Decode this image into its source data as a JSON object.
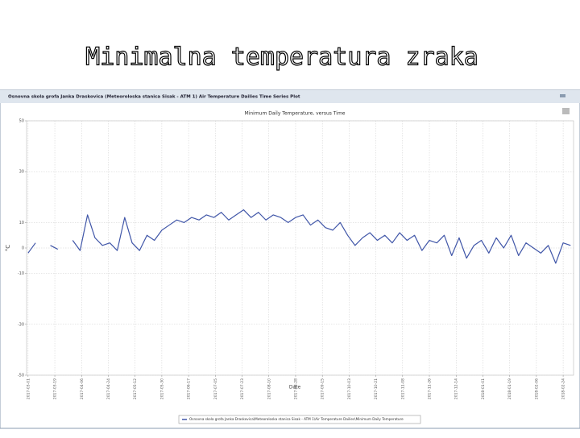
{
  "slide_title": "Minimalna temperatura zraka",
  "window_title": "Osnovna skola grofa Janka Draskovica (Meteoroloska stanica Sisak - ATM 1) Air Temperature Dailies Time Series Plot",
  "chart_data": {
    "type": "line",
    "title": "Minimum Daily Temperature, versus Time",
    "x_label": "Date",
    "y_label": "°C",
    "x": [
      "2017-03-01",
      "2017-03-06",
      "2017-03-11",
      "2017-03-16",
      "2017-03-21",
      "2017-03-26",
      "2017-03-31",
      "2017-04-05",
      "2017-04-10",
      "2017-04-15",
      "2017-04-20",
      "2017-04-25",
      "2017-04-30",
      "2017-05-05",
      "2017-05-10",
      "2017-05-15",
      "2017-05-20",
      "2017-05-25",
      "2017-05-30",
      "2017-06-04",
      "2017-06-09",
      "2017-06-14",
      "2017-06-19",
      "2017-06-24",
      "2017-06-29",
      "2017-07-04",
      "2017-07-09",
      "2017-07-14",
      "2017-07-19",
      "2017-07-24",
      "2017-07-29",
      "2017-08-03",
      "2017-08-08",
      "2017-08-13",
      "2017-08-18",
      "2017-08-23",
      "2017-08-28",
      "2017-09-02",
      "2017-09-07",
      "2017-09-12",
      "2017-09-17",
      "2017-09-22",
      "2017-09-27",
      "2017-10-02",
      "2017-10-07",
      "2017-10-12",
      "2017-10-17",
      "2017-10-22",
      "2017-10-27",
      "2017-11-01",
      "2017-11-06",
      "2017-11-11",
      "2017-11-16",
      "2017-11-21",
      "2017-11-26",
      "2017-12-01",
      "2017-12-06",
      "2017-12-11",
      "2017-12-16",
      "2017-12-21",
      "2017-12-26",
      "2017-12-31",
      "2018-01-05",
      "2018-01-10",
      "2018-01-15",
      "2018-01-20",
      "2018-01-25",
      "2018-01-30",
      "2018-02-04",
      "2018-02-09",
      "2018-02-14",
      "2018-02-19",
      "2018-02-24",
      "2018-03-01"
    ],
    "series": [
      {
        "name": "Osnovna skola grofa Janka Draskovica\\Meteoroloska stanica Sisak - ATM 1\\Air Temperature Dailies\\Minimum Daily Temperature",
        "color": "#4056a8",
        "values": [
          -2,
          2,
          null,
          1,
          -0.5,
          null,
          3,
          -1,
          13,
          4,
          1,
          2,
          -1,
          12,
          2,
          -1,
          5,
          3,
          7,
          9,
          11,
          10,
          12,
          11,
          13,
          12,
          14,
          11,
          13,
          15,
          12,
          14,
          11,
          13,
          12,
          10,
          12,
          13,
          9,
          11,
          8,
          7,
          10,
          5,
          1,
          4,
          6,
          3,
          5,
          2,
          6,
          3,
          5,
          -1,
          3,
          2,
          5,
          -3,
          4,
          -4,
          1,
          3,
          -2,
          4,
          0,
          5,
          -3,
          2,
          0,
          -2,
          1,
          -6,
          2,
          1
        ]
      }
    ],
    "xlim": [
      "2017-02-28",
      "2018-03-03"
    ],
    "xticks": [
      "2017-03-01",
      "2017-03-19",
      "2017-04-06",
      "2017-04-24",
      "2017-05-12",
      "2017-05-30",
      "2017-06-17",
      "2017-07-05",
      "2017-07-23",
      "2017-08-10",
      "2017-08-28",
      "2017-09-15",
      "2017-10-03",
      "2017-10-21",
      "2017-11-08",
      "2017-11-26",
      "2017-12-14",
      "2018-01-01",
      "2018-01-19",
      "2018-02-06",
      "2018-02-24"
    ],
    "ylim": [
      -50,
      50
    ],
    "yticks": [
      -50,
      -30,
      -10,
      0,
      10,
      30,
      50
    ],
    "grid": true
  }
}
